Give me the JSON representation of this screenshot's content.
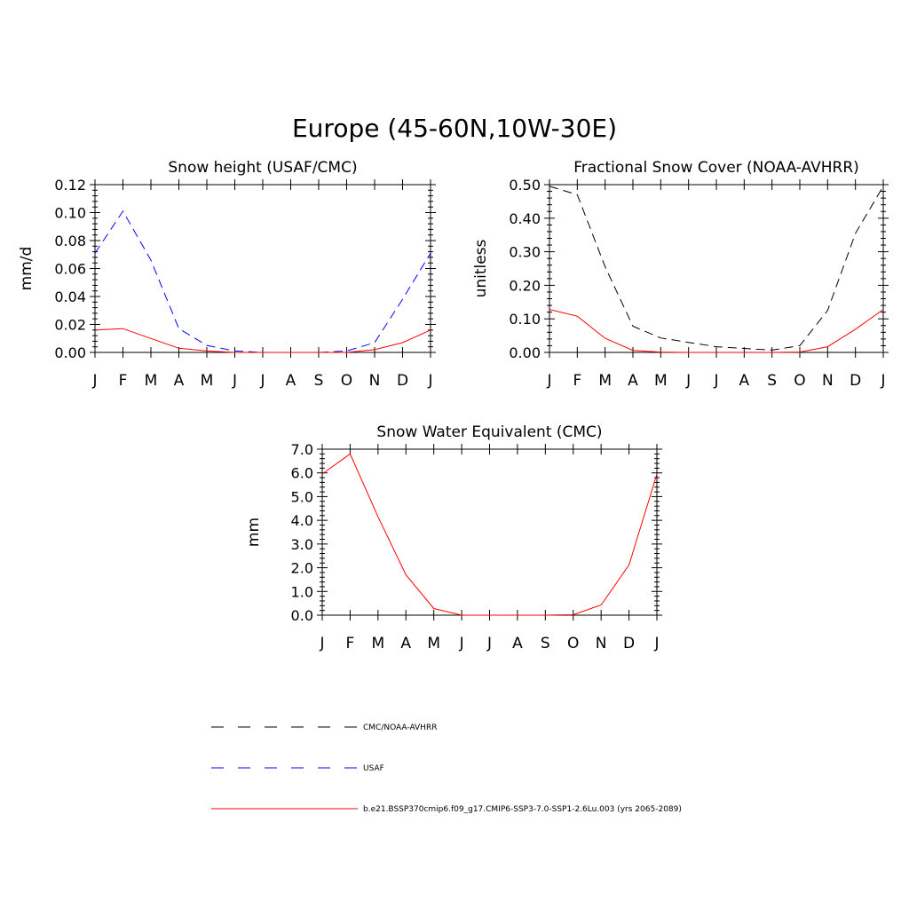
{
  "figure": {
    "title": "Europe (45-60N,10W-30E)"
  },
  "chart_data": [
    {
      "type": "line",
      "title": "Snow height (USAF/CMC)",
      "ylabel": "mm/d",
      "xlabel": "",
      "categories": [
        "J",
        "F",
        "M",
        "A",
        "M",
        "J",
        "J",
        "A",
        "S",
        "O",
        "N",
        "D",
        "J"
      ],
      "ylim": [
        0,
        0.12
      ],
      "yticks": [
        "0.00",
        "0.02",
        "0.04",
        "0.06",
        "0.08",
        "0.10",
        "0.12"
      ],
      "series": [
        {
          "name": "CMC/NOAA-AVHRR",
          "color": "#000000",
          "dash": "dashed",
          "values": [
            0,
            0,
            0,
            0,
            0,
            0,
            0,
            0,
            0,
            0,
            0,
            0,
            0
          ]
        },
        {
          "name": "USAF",
          "color": "#0000ff",
          "dash": "dashed",
          "values": [
            0.071,
            0.101,
            0.066,
            0.017,
            0.005,
            0.001,
            0.0,
            0.0,
            0.0,
            0.001,
            0.007,
            0.038,
            0.071
          ]
        },
        {
          "name": "b.e21.BSSP370cmip6.f09_g17.CMIP6-SSP3-7.0-SSP1-2.6Lu.003 (yrs 2065-2089)",
          "color": "#ff0000",
          "dash": "solid",
          "values": [
            0.016,
            0.017,
            0.01,
            0.003,
            0.001,
            0.0,
            0.0,
            0.0,
            0.0,
            0.0,
            0.002,
            0.007,
            0.016
          ]
        }
      ]
    },
    {
      "type": "line",
      "title": "Fractional Snow Cover (NOAA-AVHRR)",
      "ylabel": "unitless",
      "xlabel": "",
      "categories": [
        "J",
        "F",
        "M",
        "A",
        "M",
        "J",
        "J",
        "A",
        "S",
        "O",
        "N",
        "D",
        "J"
      ],
      "ylim": [
        0,
        0.5
      ],
      "yticks": [
        "0.00",
        "0.10",
        "0.20",
        "0.30",
        "0.40",
        "0.50"
      ],
      "series": [
        {
          "name": "CMC/NOAA-AVHRR",
          "color": "#000000",
          "dash": "dashed",
          "values": [
            0.495,
            0.47,
            0.255,
            0.078,
            0.043,
            0.03,
            0.017,
            0.012,
            0.007,
            0.02,
            0.125,
            0.355,
            0.495
          ]
        },
        {
          "name": "b.e21.BSSP370cmip6.f09_g17.CMIP6-SSP3-7.0-SSP1-2.6Lu.003 (yrs 2065-2089)",
          "color": "#ff0000",
          "dash": "solid",
          "values": [
            0.128,
            0.108,
            0.042,
            0.006,
            0.001,
            0.0,
            0.0,
            0.0,
            0.0,
            0.001,
            0.017,
            0.069,
            0.128
          ]
        }
      ]
    },
    {
      "type": "line",
      "title": "Snow Water Equivalent (CMC)",
      "ylabel": "mm",
      "xlabel": "",
      "categories": [
        "J",
        "F",
        "M",
        "A",
        "M",
        "J",
        "J",
        "A",
        "S",
        "O",
        "N",
        "D",
        "J"
      ],
      "ylim": [
        0,
        7
      ],
      "yticks": [
        "0.0",
        "1.0",
        "2.0",
        "3.0",
        "4.0",
        "5.0",
        "6.0",
        "7.0"
      ],
      "series": [
        {
          "name": "CMC/NOAA-AVHRR",
          "color": "#000000",
          "dash": "dashed",
          "values": [
            0,
            0,
            0,
            0,
            0,
            0,
            0,
            0,
            0,
            0,
            0,
            0,
            0
          ]
        },
        {
          "name": "b.e21.BSSP370cmip6.f09_g17.CMIP6-SSP3-7.0-SSP1-2.6Lu.003 (yrs 2065-2089)",
          "color": "#ff0000",
          "dash": "solid",
          "values": [
            5.95,
            6.8,
            4.15,
            1.7,
            0.28,
            0.0,
            0.0,
            0.0,
            0.0,
            0.02,
            0.43,
            2.12,
            5.95
          ]
        }
      ]
    }
  ],
  "legend": {
    "items": [
      {
        "label": "CMC/NOAA-AVHRR",
        "color": "#000000",
        "dash": "dashed"
      },
      {
        "label": "USAF",
        "color": "#0000ff",
        "dash": "dashed"
      },
      {
        "label": "b.e21.BSSP370cmip6.f09_g17.CMIP6-SSP3-7.0-SSP1-2.6Lu.003 (yrs 2065-2089)",
        "color": "#ff0000",
        "dash": "solid"
      }
    ]
  }
}
